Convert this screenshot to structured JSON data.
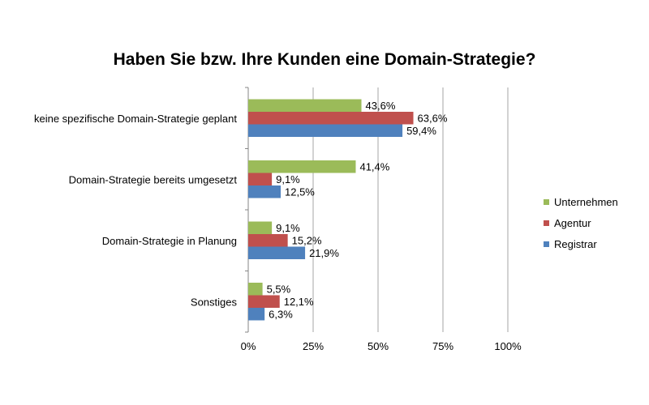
{
  "chart_data": {
    "type": "bar",
    "orientation": "horizontal",
    "title": "Haben Sie bzw. Ihre Kunden eine Domain-Strategie?",
    "categories": [
      "keine spezifische Domain-Strategie geplant",
      "Domain-Strategie bereits umgesetzt",
      "Domain-Strategie in Planung",
      "Sonstiges"
    ],
    "series": [
      {
        "name": "Unternehmen",
        "color": "#9bbb59",
        "values": [
          43.6,
          41.4,
          9.1,
          5.5
        ],
        "labels": [
          "43,6%",
          "41,4%",
          "9,1%",
          "5,5%"
        ]
      },
      {
        "name": "Agentur",
        "color": "#c0504d",
        "values": [
          63.6,
          9.1,
          15.2,
          12.1
        ],
        "labels": [
          "63,6%",
          "9,1%",
          "15,2%",
          "12,1%"
        ]
      },
      {
        "name": "Registrar",
        "color": "#4f81bd",
        "values": [
          59.4,
          12.5,
          21.9,
          6.3
        ],
        "labels": [
          "59,4%",
          "12,5%",
          "21,9%",
          "6,3%"
        ]
      }
    ],
    "xlim": [
      0,
      100
    ],
    "xticks": [
      0,
      25,
      50,
      75,
      100
    ],
    "xtick_labels": [
      "0%",
      "25%",
      "50%",
      "75%",
      "100%"
    ],
    "grid": true,
    "legend_position": "right"
  }
}
